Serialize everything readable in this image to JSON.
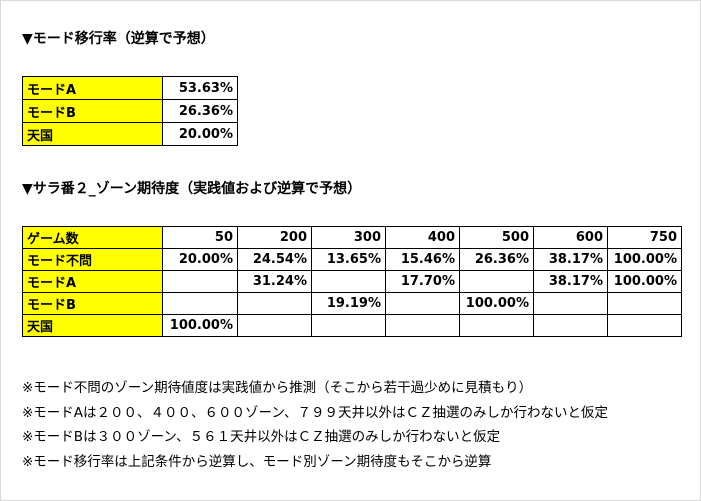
{
  "heading1": "▼モード移行率（逆算で予想）",
  "mode_rates": [
    {
      "label": "モードA",
      "value": "53.63%"
    },
    {
      "label": "モードB",
      "value": "26.36%"
    },
    {
      "label": "天国",
      "value": "20.00%"
    }
  ],
  "heading2": "▼サラ番２_ゾーン期待度（実践値および逆算で予想）",
  "zone_table": {
    "header_label": "ゲーム数",
    "columns": [
      "50",
      "200",
      "300",
      "400",
      "500",
      "600",
      "750"
    ],
    "rows": [
      {
        "label": "モード不問",
        "cells": [
          "20.00%",
          "24.54%",
          "13.65%",
          "15.46%",
          "26.36%",
          "38.17%",
          "100.00%"
        ]
      },
      {
        "label": "モードA",
        "cells": [
          "",
          "31.24%",
          "",
          "17.70%",
          "",
          "38.17%",
          "100.00%"
        ]
      },
      {
        "label": "モードB",
        "cells": [
          "",
          "",
          "19.19%",
          "",
          "100.00%",
          "",
          ""
        ]
      },
      {
        "label": "天国",
        "cells": [
          "100.00%",
          "",
          "",
          "",
          "",
          "",
          ""
        ]
      }
    ]
  },
  "notes": [
    "※モード不問のゾーン期待値度は実践値から推測（そこから若干過少めに見積もり）",
    "※モードAは２００、４００、６００ゾーン、７９９天井以外はＣＺ抽選のみしか行わないと仮定",
    "※モードBは３００ゾーン、５６１天井以外はＣＺ抽選のみしか行わないと仮定",
    "※モード移行率は上記条件から逆算し、モード別ゾーン期待度もそこから逆算"
  ]
}
